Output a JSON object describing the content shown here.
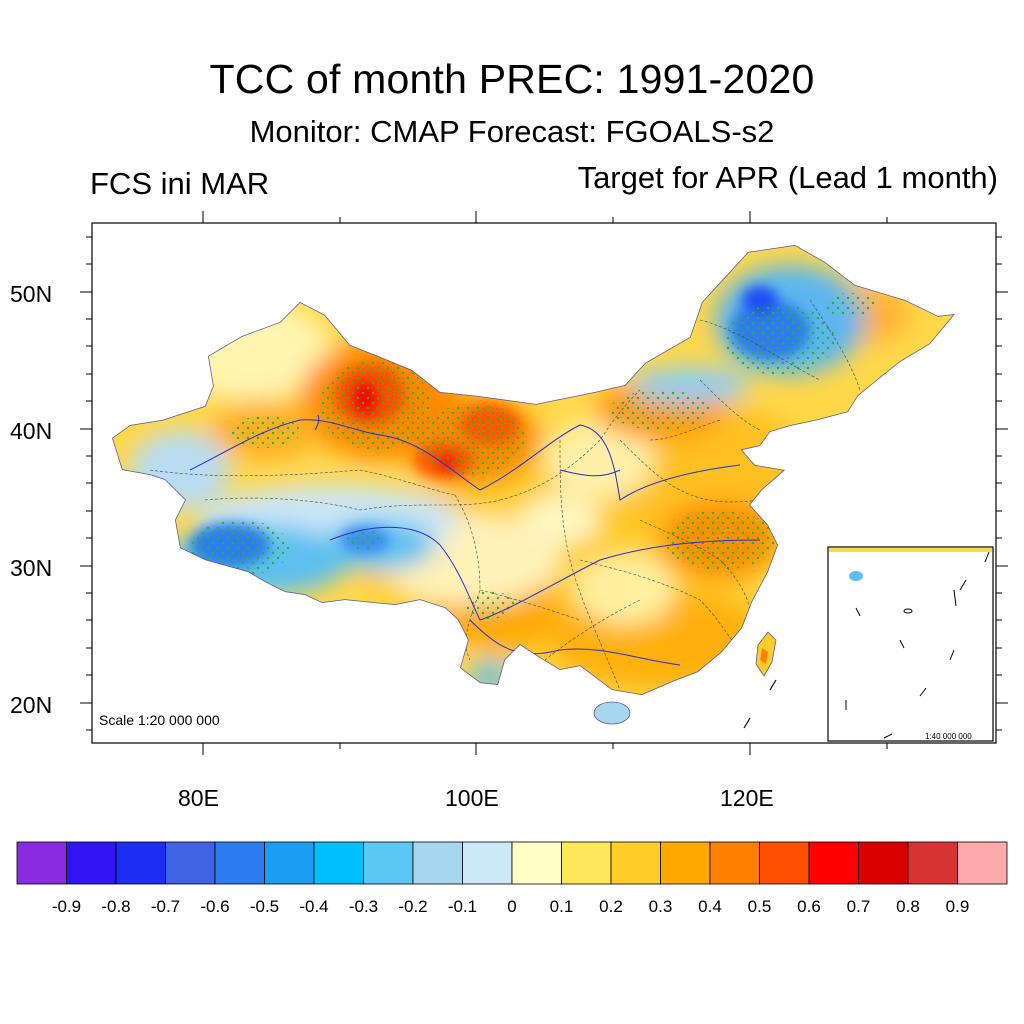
{
  "figure": {
    "title": "TCC of month PREC: 1991-2020",
    "subtitle": "Monitor: CMAP   Forecast: FGOALS-s2",
    "left_label": "FCS ini MAR",
    "right_label": "Target for APR (Lead 1 month)",
    "scale_note": "Scale 1:20 000 000",
    "inset_scale_note": "1:40 000 000"
  },
  "axes": {
    "lat_labels": [
      "50N",
      "40N",
      "30N",
      "20N"
    ],
    "lon_labels": [
      "80E",
      "100E",
      "120E"
    ]
  },
  "colorbar": {
    "colors": [
      "#8a2be2",
      "#3016f5",
      "#1b2ef2",
      "#3f63e2",
      "#2d7cf0",
      "#1d9cf4",
      "#00bfff",
      "#5bc7f2",
      "#a6d6f0",
      "#cbe8f6",
      "#ffffc8",
      "#ffe85c",
      "#ffcc2a",
      "#ffa800",
      "#ff8000",
      "#ff4f00",
      "#ff0000",
      "#d90000",
      "#d83333",
      "#ffaaaa"
    ],
    "tick_labels": [
      "-0.9",
      "-0.8",
      "-0.7",
      "-0.6",
      "-0.5",
      "-0.4",
      "-0.3",
      "-0.2",
      "-0.1",
      "0",
      "0.1",
      "0.2",
      "0.3",
      "0.4",
      "0.5",
      "0.6",
      "0.7",
      "0.8",
      "0.9"
    ]
  }
}
